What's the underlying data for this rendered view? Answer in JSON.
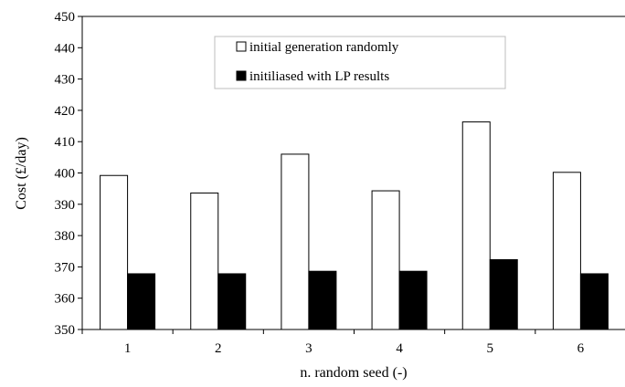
{
  "chart_data": {
    "type": "bar",
    "categories": [
      "1",
      "2",
      "3",
      "4",
      "5",
      "6"
    ],
    "series": [
      {
        "name": "initial generation randomly",
        "values": [
          399.2,
          393.6,
          406.0,
          394.3,
          416.3,
          400.2
        ],
        "color": "#ffffff"
      },
      {
        "name": "initiliased with LP results",
        "values": [
          367.8,
          367.8,
          368.6,
          368.6,
          372.3,
          367.8
        ],
        "color": "#000000"
      }
    ],
    "xlabel": "n. random seed (-)",
    "ylabel": "Cost (£/day)",
    "ylim": [
      350,
      450
    ],
    "yticks": [
      350,
      360,
      370,
      380,
      390,
      400,
      410,
      420,
      430,
      440,
      450
    ],
    "grid": false,
    "legend_position": "top-center"
  }
}
